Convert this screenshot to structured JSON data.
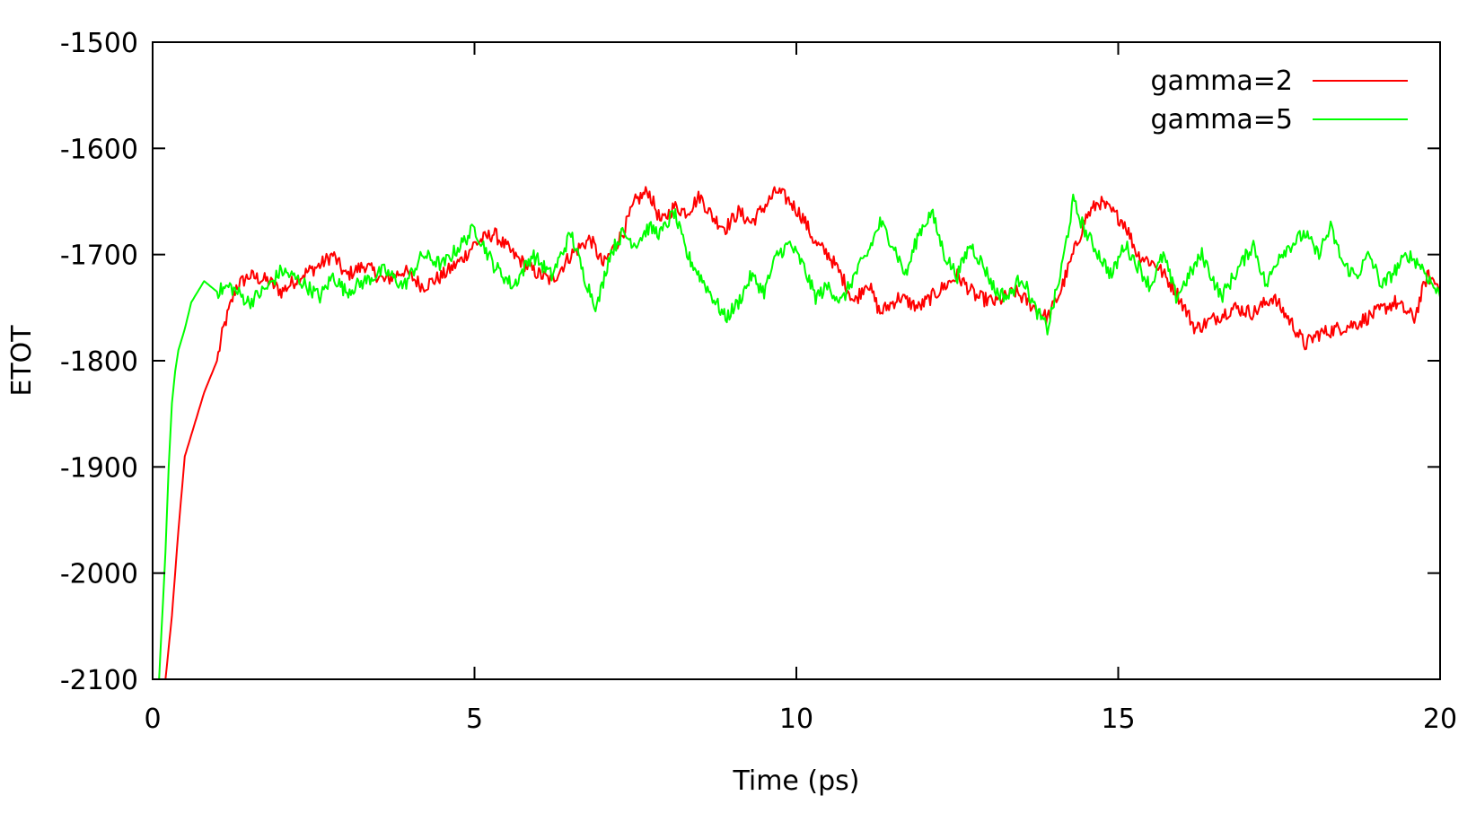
{
  "chart_data": {
    "type": "line",
    "title": "",
    "xlabel": "Time (ps)",
    "ylabel": "ETOT",
    "xlim": [
      0,
      20
    ],
    "ylim": [
      -2100,
      -1500
    ],
    "x_ticks": [
      0,
      5,
      10,
      15,
      20
    ],
    "x_tick_labels": [
      "0",
      "5",
      "10",
      "15",
      "20"
    ],
    "y_ticks": [
      -2100,
      -2000,
      -1900,
      -1800,
      -1700,
      -1600,
      -1500
    ],
    "y_tick_labels": [
      "-2100",
      "-2000",
      "-1900",
      "-1800",
      "-1700",
      "-1600",
      "-1500"
    ],
    "grid": false,
    "legend_position": "top-right",
    "series": [
      {
        "name": "gamma=2",
        "color": "#ff0000",
        "x": [
          0.2,
          0.3,
          0.4,
          0.5,
          0.6,
          0.7,
          0.8,
          0.9,
          1.0,
          1.1,
          1.2,
          1.3,
          1.5,
          1.8,
          2.0,
          2.3,
          2.6,
          2.8,
          3.0,
          3.3,
          3.6,
          3.9,
          4.2,
          4.5,
          4.8,
          5.0,
          5.3,
          5.6,
          5.9,
          6.2,
          6.5,
          6.8,
          7.0,
          7.3,
          7.5,
          7.7,
          7.9,
          8.1,
          8.3,
          8.5,
          8.7,
          8.9,
          9.1,
          9.3,
          9.5,
          9.7,
          9.9,
          10.1,
          10.3,
          10.5,
          10.7,
          10.9,
          11.1,
          11.3,
          11.6,
          11.9,
          12.2,
          12.5,
          12.8,
          13.1,
          13.4,
          13.7,
          13.9,
          14.1,
          14.3,
          14.5,
          14.7,
          14.9,
          15.1,
          15.3,
          15.6,
          15.9,
          16.2,
          16.5,
          16.8,
          17.1,
          17.4,
          17.7,
          17.9,
          18.1,
          18.4,
          18.7,
          19.0,
          19.3,
          19.6,
          19.8,
          20.0
        ],
        "y": [
          -2100,
          -2040,
          -1960,
          -1890,
          -1870,
          -1850,
          -1830,
          -1815,
          -1800,
          -1770,
          -1750,
          -1730,
          -1720,
          -1725,
          -1735,
          -1720,
          -1710,
          -1700,
          -1720,
          -1710,
          -1725,
          -1715,
          -1730,
          -1720,
          -1705,
          -1690,
          -1680,
          -1700,
          -1715,
          -1725,
          -1700,
          -1685,
          -1710,
          -1680,
          -1650,
          -1640,
          -1670,
          -1655,
          -1660,
          -1645,
          -1665,
          -1675,
          -1660,
          -1670,
          -1655,
          -1640,
          -1650,
          -1665,
          -1690,
          -1700,
          -1720,
          -1745,
          -1725,
          -1755,
          -1740,
          -1750,
          -1735,
          -1720,
          -1740,
          -1745,
          -1735,
          -1750,
          -1760,
          -1735,
          -1700,
          -1665,
          -1650,
          -1660,
          -1670,
          -1700,
          -1710,
          -1735,
          -1770,
          -1760,
          -1750,
          -1755,
          -1740,
          -1765,
          -1785,
          -1775,
          -1770,
          -1765,
          -1755,
          -1745,
          -1760,
          -1720,
          -1730
        ]
      },
      {
        "name": "gamma=5",
        "color": "#00ff00",
        "x": [
          0.1,
          0.2,
          0.25,
          0.3,
          0.35,
          0.4,
          0.45,
          0.5,
          0.6,
          0.7,
          0.8,
          1.0,
          1.2,
          1.5,
          1.8,
          2.0,
          2.3,
          2.6,
          2.8,
          3.0,
          3.3,
          3.6,
          3.9,
          4.2,
          4.5,
          4.8,
          5.0,
          5.3,
          5.6,
          5.9,
          6.2,
          6.5,
          6.7,
          6.9,
          7.1,
          7.3,
          7.5,
          7.7,
          7.9,
          8.1,
          8.3,
          8.5,
          8.7,
          8.9,
          9.1,
          9.3,
          9.5,
          9.7,
          9.9,
          10.1,
          10.3,
          10.5,
          10.7,
          10.9,
          11.1,
          11.3,
          11.5,
          11.7,
          11.9,
          12.1,
          12.3,
          12.5,
          12.7,
          12.9,
          13.1,
          13.3,
          13.5,
          13.7,
          13.9,
          14.1,
          14.3,
          14.5,
          14.7,
          14.9,
          15.1,
          15.3,
          15.5,
          15.7,
          15.9,
          16.1,
          16.3,
          16.6,
          16.9,
          17.1,
          17.3,
          17.5,
          17.7,
          17.9,
          18.1,
          18.3,
          18.5,
          18.7,
          18.9,
          19.1,
          19.3,
          19.5,
          19.7,
          19.9,
          20.0
        ],
        "y": [
          -2100,
          -1980,
          -1900,
          -1840,
          -1810,
          -1790,
          -1780,
          -1770,
          -1745,
          -1735,
          -1725,
          -1735,
          -1730,
          -1745,
          -1730,
          -1715,
          -1725,
          -1740,
          -1720,
          -1735,
          -1725,
          -1715,
          -1730,
          -1700,
          -1710,
          -1690,
          -1675,
          -1710,
          -1730,
          -1700,
          -1720,
          -1680,
          -1720,
          -1750,
          -1700,
          -1680,
          -1690,
          -1675,
          -1680,
          -1660,
          -1700,
          -1720,
          -1740,
          -1760,
          -1745,
          -1720,
          -1735,
          -1700,
          -1690,
          -1710,
          -1740,
          -1730,
          -1745,
          -1720,
          -1700,
          -1670,
          -1690,
          -1720,
          -1680,
          -1660,
          -1700,
          -1720,
          -1690,
          -1710,
          -1735,
          -1740,
          -1720,
          -1750,
          -1770,
          -1720,
          -1650,
          -1680,
          -1700,
          -1720,
          -1690,
          -1710,
          -1730,
          -1700,
          -1740,
          -1720,
          -1700,
          -1740,
          -1710,
          -1690,
          -1730,
          -1700,
          -1690,
          -1680,
          -1700,
          -1675,
          -1710,
          -1720,
          -1700,
          -1730,
          -1715,
          -1700,
          -1710,
          -1730,
          -1740
        ]
      }
    ]
  }
}
